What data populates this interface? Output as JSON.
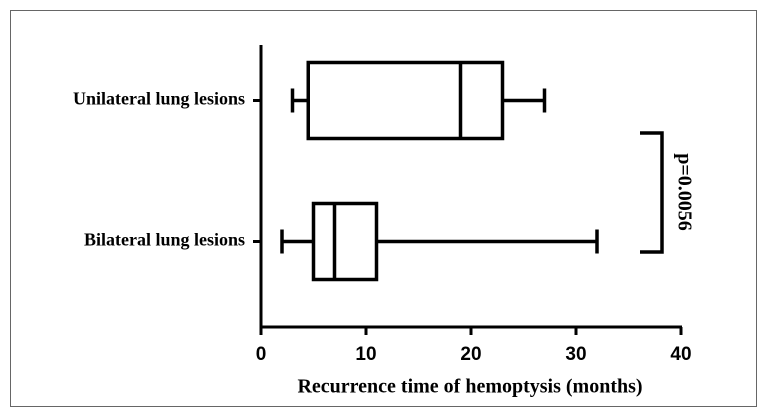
{
  "chart_data": {
    "type": "box",
    "categories": [
      "Unilateral lung lesions",
      "Bilateral lung lesions"
    ],
    "boxes": [
      {
        "min": 3,
        "q1": 4.5,
        "median": 19,
        "q3": 23,
        "max": 27
      },
      {
        "min": 2,
        "q1": 5,
        "median": 7,
        "q3": 11,
        "max": 32
      }
    ],
    "color": "#000000",
    "xlabel": "Recurrence time of hemoptysis (months)",
    "xlim": [
      0,
      40
    ],
    "xticks": [
      0,
      10,
      20,
      30,
      40
    ],
    "annotation": "p=0.0056"
  }
}
